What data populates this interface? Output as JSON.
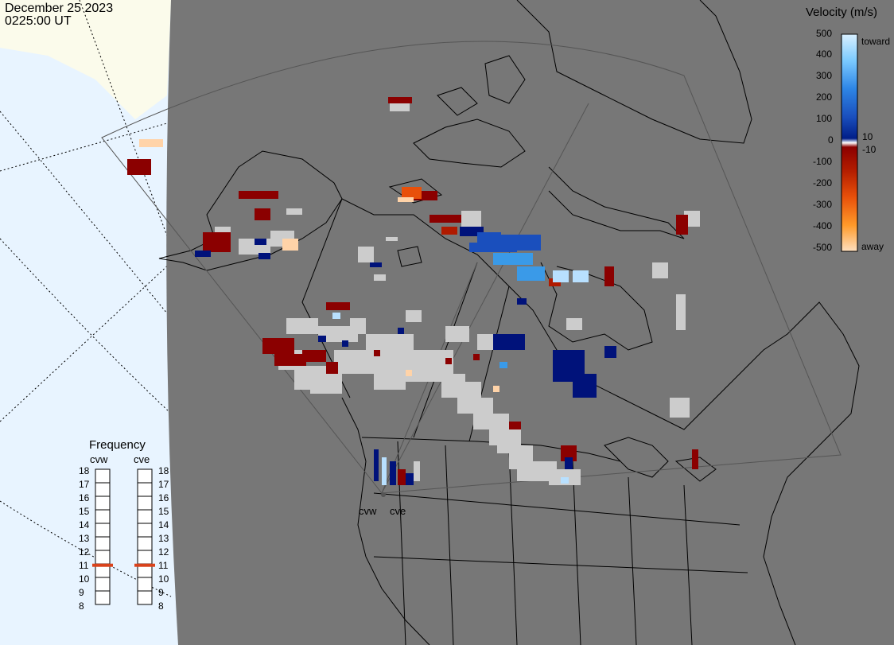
{
  "header": {
    "date": "December 25 2023",
    "time": "0225:00 UT"
  },
  "velocity_legend": {
    "title": "Velocity (m/s)",
    "ticks": [
      "500",
      "400",
      "300",
      "200",
      "100",
      "10",
      "0",
      "-10",
      "-100",
      "-200",
      "-300",
      "-400",
      "-500"
    ],
    "toward_label": "toward",
    "away_label": "away"
  },
  "frequency_panel": {
    "title": "Frequency",
    "radars": [
      {
        "name": "cvw",
        "frequency_mhz": 10.9
      },
      {
        "name": "cve",
        "frequency_mhz": 10.9
      }
    ],
    "scale": [
      "18",
      "17",
      "16",
      "15",
      "14",
      "13",
      "12",
      "11",
      "10",
      "9",
      "8"
    ]
  },
  "map_labels": {
    "radar_west": "cvw",
    "radar_east": "cve"
  },
  "colors": {
    "ocean": "#777777",
    "background_sky": "#e8f4ff",
    "land_pale": "#fbfbeb",
    "ground_scatter": "#cccccc",
    "freq_marker": "#d9421b"
  }
}
